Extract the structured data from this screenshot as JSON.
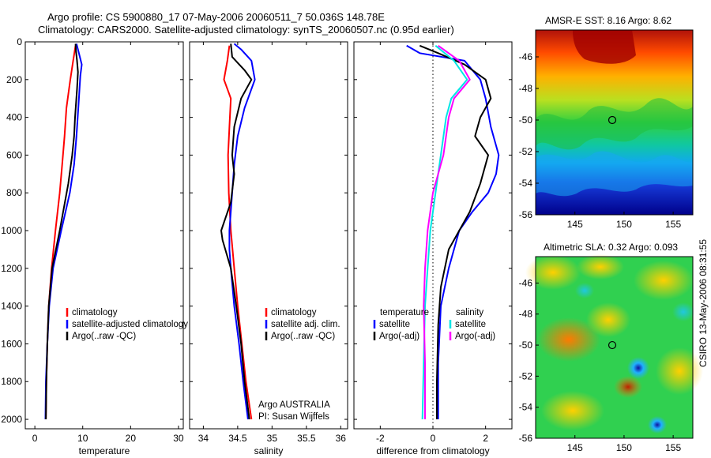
{
  "title": {
    "line1": "Argo profile: CS 5900880_17 07-May-2006 20060511_7 50.036S 148.78E",
    "line2": "Climatology: CARS2000. Satellite-adjusted climatology: synTS_20060507.nc (0.95d earlier)"
  },
  "side_text": "CSIRO 13-May-2006 08:31:55",
  "colors": {
    "red": "#ff0000",
    "blue": "#0000ff",
    "black": "#000000",
    "cyan": "#00e5e5",
    "magenta": "#ff00ff"
  },
  "chart_data": [
    {
      "id": "temperature",
      "type": "line",
      "xlabel": "temperature",
      "xlim": [
        -2,
        31
      ],
      "ylim": [
        0,
        2050
      ],
      "y_reversed": true,
      "xticks": [
        0,
        10,
        20,
        30
      ],
      "yticks": [
        0,
        200,
        400,
        600,
        800,
        1000,
        1200,
        1400,
        1600,
        1800,
        2000
      ],
      "legend": {
        "placement": "lower-center",
        "items": [
          {
            "label": "climatology",
            "color": "#ff0000"
          },
          {
            "label": "satellite-adjusted climatology",
            "color": "#0000ff"
          },
          {
            "label": "Argo(..raw -QC)",
            "color": "#000000"
          }
        ]
      },
      "series": [
        {
          "color": "#ff0000",
          "points": [
            [
              8.5,
              20
            ],
            [
              8.0,
              100
            ],
            [
              7.4,
              200
            ],
            [
              6.6,
              350
            ],
            [
              6.2,
              500
            ],
            [
              5.7,
              650
            ],
            [
              5.2,
              800
            ],
            [
              4.3,
              1000
            ],
            [
              3.5,
              1200
            ],
            [
              2.9,
              1400
            ],
            [
              2.6,
              1600
            ],
            [
              2.4,
              1800
            ],
            [
              2.3,
              2000
            ]
          ]
        },
        {
          "color": "#0000ff",
          "points": [
            [
              8.7,
              10
            ],
            [
              9.0,
              40
            ],
            [
              9.4,
              80
            ],
            [
              9.8,
              120
            ],
            [
              9.5,
              180
            ],
            [
              9.2,
              300
            ],
            [
              8.7,
              500
            ],
            [
              8.2,
              650
            ],
            [
              7.3,
              800
            ],
            [
              5.5,
              1000
            ],
            [
              3.8,
              1200
            ],
            [
              3.0,
              1400
            ],
            [
              2.6,
              1600
            ],
            [
              2.3,
              1800
            ],
            [
              2.2,
              2000
            ]
          ]
        },
        {
          "color": "#000000",
          "points": [
            [
              8.5,
              10
            ],
            [
              8.6,
              50
            ],
            [
              8.8,
              100
            ],
            [
              9.0,
              160
            ],
            [
              8.8,
              250
            ],
            [
              8.4,
              400
            ],
            [
              8.2,
              500
            ],
            [
              7.8,
              600
            ],
            [
              7.0,
              750
            ],
            [
              5.2,
              1000
            ],
            [
              3.6,
              1200
            ],
            [
              2.9,
              1400
            ],
            [
              2.6,
              1600
            ],
            [
              2.4,
              1800
            ],
            [
              2.3,
              2000
            ]
          ]
        }
      ]
    },
    {
      "id": "salinity",
      "type": "line",
      "xlabel": "salinity",
      "xlim": [
        33.8,
        36.1
      ],
      "ylim": [
        0,
        2050
      ],
      "y_reversed": true,
      "xticks": [
        34,
        34.5,
        35,
        35.5,
        36
      ],
      "yticks": [
        0,
        200,
        400,
        600,
        800,
        1000,
        1200,
        1400,
        1600,
        1800,
        2000
      ],
      "legend": {
        "placement": "lower-right",
        "items": [
          {
            "label": "climatology",
            "color": "#ff0000"
          },
          {
            "label": "satellite adj. clim.",
            "color": "#0000ff"
          },
          {
            "label": "Argo(..raw -QC)",
            "color": "#000000"
          }
        ]
      },
      "annotation": {
        "line1": "Argo AUSTRALIA",
        "line2": "PI: Susan Wijffels"
      },
      "series": [
        {
          "color": "#ff0000",
          "points": [
            [
              34.38,
              20
            ],
            [
              34.35,
              100
            ],
            [
              34.3,
              200
            ],
            [
              34.4,
              300
            ],
            [
              34.38,
              450
            ],
            [
              34.36,
              600
            ],
            [
              34.37,
              800
            ],
            [
              34.4,
              1000
            ],
            [
              34.45,
              1200
            ],
            [
              34.5,
              1400
            ],
            [
              34.56,
              1600
            ],
            [
              34.62,
              1800
            ],
            [
              34.7,
              2000
            ]
          ]
        },
        {
          "color": "#0000ff",
          "points": [
            [
              34.45,
              10
            ],
            [
              34.55,
              40
            ],
            [
              34.7,
              100
            ],
            [
              34.75,
              200
            ],
            [
              34.6,
              350
            ],
            [
              34.5,
              500
            ],
            [
              34.45,
              650
            ],
            [
              34.42,
              800
            ],
            [
              34.38,
              1000
            ],
            [
              34.38,
              1100
            ],
            [
              34.4,
              1200
            ],
            [
              34.45,
              1400
            ],
            [
              34.52,
              1600
            ],
            [
              34.58,
              1800
            ],
            [
              34.65,
              2000
            ]
          ]
        },
        {
          "color": "#000000",
          "points": [
            [
              34.4,
              10
            ],
            [
              34.42,
              80
            ],
            [
              34.6,
              150
            ],
            [
              34.7,
              200
            ],
            [
              34.55,
              300
            ],
            [
              34.45,
              450
            ],
            [
              34.42,
              600
            ],
            [
              34.45,
              700
            ],
            [
              34.4,
              850
            ],
            [
              34.26,
              1000
            ],
            [
              34.28,
              1050
            ],
            [
              34.4,
              1200
            ],
            [
              34.48,
              1400
            ],
            [
              34.55,
              1600
            ],
            [
              34.6,
              1800
            ],
            [
              34.67,
              2000
            ]
          ]
        }
      ]
    },
    {
      "id": "difference",
      "type": "line",
      "xlabel": "difference from climatology",
      "xlim": [
        -3,
        3
      ],
      "ylim": [
        0,
        2050
      ],
      "y_reversed": true,
      "xticks": [
        -2,
        0,
        2
      ],
      "yticks": [
        0,
        200,
        400,
        600,
        800,
        1000,
        1200,
        1400,
        1600,
        1800,
        2000
      ],
      "legend": {
        "placement": "lower-center",
        "columns": [
          {
            "header": "temperature",
            "items": [
              {
                "label": "satellite",
                "color": "#0000ff"
              },
              {
                "label": "Argo(-adj)",
                "color": "#000000"
              }
            ]
          },
          {
            "header": "salinity",
            "items": [
              {
                "label": "satellite",
                "color": "#00e5e5"
              },
              {
                "label": "Argo(-adj)",
                "color": "#ff00ff"
              }
            ]
          }
        ]
      },
      "series": [
        {
          "color": "#0000ff",
          "points": [
            [
              -1.0,
              20
            ],
            [
              -0.5,
              60
            ],
            [
              1.2,
              100
            ],
            [
              1.8,
              200
            ],
            [
              2.0,
              300
            ],
            [
              2.2,
              450
            ],
            [
              2.5,
              600
            ],
            [
              2.4,
              700
            ],
            [
              2.1,
              800
            ],
            [
              1.5,
              900
            ],
            [
              1.0,
              1000
            ],
            [
              0.6,
              1200
            ],
            [
              0.3,
              1400
            ],
            [
              0.2,
              1700
            ],
            [
              0.2,
              2000
            ]
          ]
        },
        {
          "color": "#000000",
          "points": [
            [
              -0.5,
              20
            ],
            [
              0.2,
              60
            ],
            [
              1.2,
              120
            ],
            [
              2.0,
              200
            ],
            [
              2.2,
              300
            ],
            [
              1.8,
              400
            ],
            [
              1.6,
              500
            ],
            [
              2.1,
              600
            ],
            [
              1.8,
              750
            ],
            [
              1.4,
              900
            ],
            [
              0.6,
              1100
            ],
            [
              0.3,
              1300
            ],
            [
              0.2,
              1500
            ],
            [
              0.15,
              1800
            ],
            [
              0.15,
              2000
            ]
          ]
        },
        {
          "color": "#00e5e5",
          "points": [
            [
              0.1,
              20
            ],
            [
              0.8,
              100
            ],
            [
              1.3,
              200
            ],
            [
              0.7,
              300
            ],
            [
              0.5,
              400
            ],
            [
              0.3,
              600
            ],
            [
              0.1,
              800
            ],
            [
              -0.1,
              1000
            ],
            [
              -0.2,
              1200
            ],
            [
              -0.3,
              1400
            ],
            [
              -0.35,
              1700
            ],
            [
              -0.4,
              2000
            ]
          ]
        },
        {
          "color": "#ff00ff",
          "points": [
            [
              0.2,
              20
            ],
            [
              1.0,
              100
            ],
            [
              1.4,
              200
            ],
            [
              0.8,
              300
            ],
            [
              0.6,
              400
            ],
            [
              0.4,
              600
            ],
            [
              0.0,
              800
            ],
            [
              -0.2,
              1000
            ],
            [
              -0.3,
              1200
            ],
            [
              -0.35,
              1400
            ],
            [
              -0.3,
              1700
            ],
            [
              -0.3,
              2000
            ]
          ]
        }
      ]
    },
    {
      "id": "sst_map",
      "type": "heatmap",
      "title": "AMSR-E SST: 8.16 Argo: 8.62",
      "xticks": [
        145,
        150,
        155
      ],
      "yticks": [
        -46,
        -48,
        -50,
        -52,
        -54,
        -56
      ],
      "xlim": [
        141,
        157
      ],
      "ylim": [
        -56,
        -44.3
      ],
      "marker": {
        "lon": 148.8,
        "lat": -50.0
      }
    },
    {
      "id": "sla_map",
      "type": "heatmap",
      "title": "Altimetric SLA: 0.32 Argo: 0.093",
      "xticks": [
        145,
        150,
        155
      ],
      "yticks": [
        -46,
        -48,
        -50,
        -52,
        -54,
        -56
      ],
      "xlim": [
        141,
        157
      ],
      "ylim": [
        -56,
        -44.3
      ],
      "marker": {
        "lon": 148.8,
        "lat": -50.0
      }
    }
  ]
}
